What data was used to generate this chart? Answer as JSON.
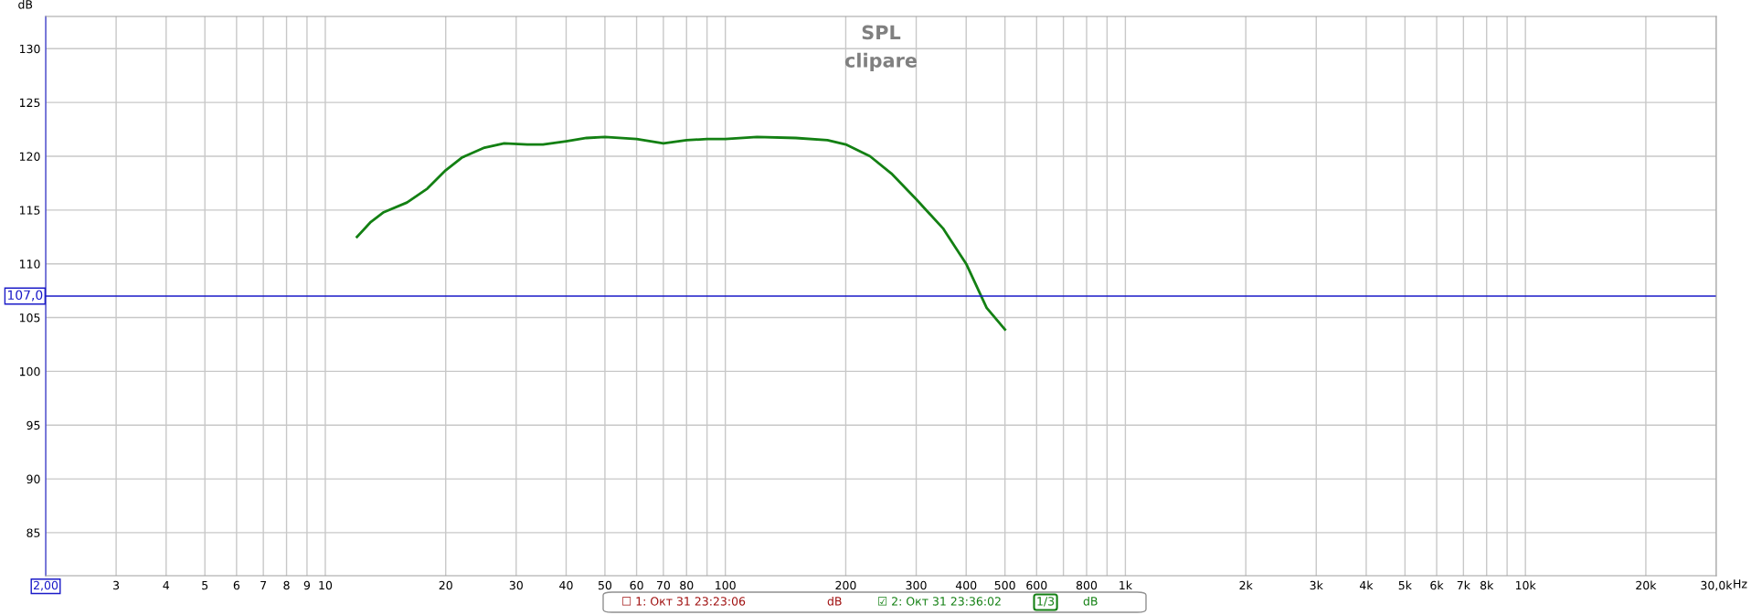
{
  "chart_data": {
    "type": "line",
    "title": "SPL",
    "subtitle": "clipare",
    "xlabel": "Hz",
    "ylabel": "dB",
    "log": "x",
    "grid": true,
    "legend": false,
    "marker": "none",
    "line_style": "solid",
    "xlim": [
      2,
      30000
    ],
    "ylim": [
      81,
      133
    ],
    "xticks": [
      {
        "value": 2,
        "label": "2,00"
      },
      3,
      4,
      5,
      6,
      7,
      8,
      9,
      10,
      20,
      30,
      40,
      50,
      60,
      70,
      80,
      {
        "value": 90,
        "label": null
      },
      100,
      200,
      300,
      400,
      500,
      600,
      {
        "value": 700,
        "label": null
      },
      800,
      {
        "value": 900,
        "label": null
      },
      {
        "value": 1000,
        "label": "1k"
      },
      {
        "value": 2000,
        "label": "2k"
      },
      {
        "value": 3000,
        "label": "3k"
      },
      {
        "value": 4000,
        "label": "4k"
      },
      {
        "value": 5000,
        "label": "5k"
      },
      {
        "value": 6000,
        "label": "6k"
      },
      {
        "value": 7000,
        "label": "7k"
      },
      {
        "value": 8000,
        "label": "8k"
      },
      {
        "value": 9000,
        "label": null
      },
      {
        "value": 10000,
        "label": "10k"
      },
      {
        "value": 20000,
        "label": "20k"
      },
      {
        "value": 30000,
        "label": "30,0k"
      }
    ],
    "yticks": [
      85,
      90,
      95,
      100,
      105,
      110,
      115,
      120,
      125,
      130
    ],
    "x": [
      12,
      13,
      14,
      16,
      18,
      20,
      22,
      25,
      28,
      32,
      35,
      40,
      45,
      50,
      60,
      70,
      80,
      90,
      100,
      120,
      150,
      180,
      200,
      230,
      260,
      300,
      350,
      400,
      450,
      500
    ],
    "series": [
      {
        "color": "#138013",
        "values": [
          112.5,
          113.9,
          114.8,
          115.7,
          117,
          118.7,
          119.9,
          120.8,
          121.2,
          121.1,
          121.1,
          121.4,
          121.7,
          121.8,
          121.6,
          121.2,
          121.5,
          121.6,
          121.6,
          121.8,
          121.7,
          121.5,
          121.1,
          120,
          118.4,
          116,
          113.3,
          110,
          105.9,
          103.9
        ]
      }
    ],
    "ref_lines": [
      {
        "axis": "y",
        "value": 107,
        "label": "107,0",
        "color": "#1a1ac8"
      }
    ],
    "annotations": [
      "☐ 1: Окт 31 23:23:06",
      "dB",
      "☑ 2: Окт 31 23:36:02",
      "1/3",
      "dB"
    ]
  }
}
